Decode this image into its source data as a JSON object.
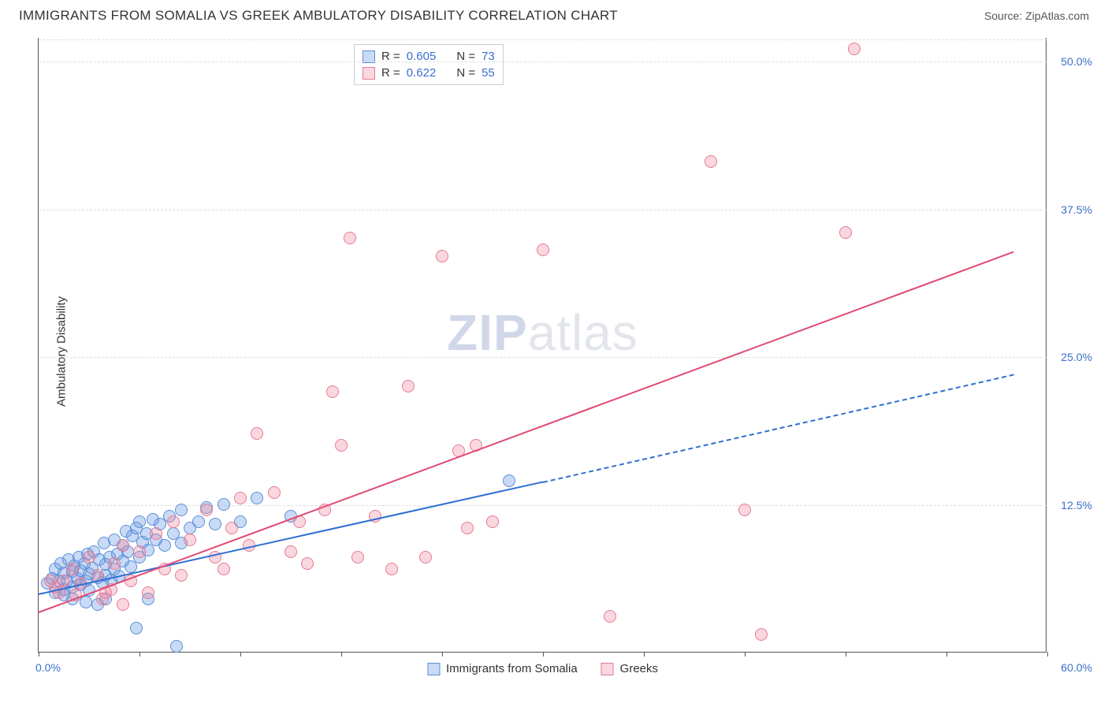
{
  "title": "IMMIGRANTS FROM SOMALIA VS GREEK AMBULATORY DISABILITY CORRELATION CHART",
  "source_label": "Source:",
  "source_name": "ZipAtlas.com",
  "y_axis_label": "Ambulatory Disability",
  "watermark_a": "ZIP",
  "watermark_b": "atlas",
  "chart": {
    "type": "scatter",
    "xlim": [
      0,
      60
    ],
    "ylim": [
      0,
      52
    ],
    "x_origin_label": "0.0%",
    "x_max_label": "60.0%",
    "y_ticks": [
      {
        "value": 12.5,
        "label": "12.5%"
      },
      {
        "value": 25.0,
        "label": "25.0%"
      },
      {
        "value": 37.5,
        "label": "37.5%"
      },
      {
        "value": 50.0,
        "label": "50.0%"
      }
    ],
    "x_tick_positions": [
      0,
      6,
      12,
      18,
      24,
      30,
      36,
      42,
      48,
      54,
      60
    ],
    "background_color": "#ffffff",
    "grid_color": "#dddddd",
    "axis_color": "#555555",
    "tick_label_color": "#3b6fc9",
    "marker_radius": 8,
    "marker_stroke_width": 1.2,
    "series": [
      {
        "id": "somalia",
        "label": "Immigrants from Somalia",
        "fill": "rgba(100,150,230,0.35)",
        "stroke": "#5a8fd6",
        "R": "0.605",
        "N": "73",
        "trend": {
          "x1": 0,
          "y1": 5.0,
          "x2": 30,
          "y2": 14.5,
          "x2_ext": 58,
          "y2_ext": 23.6,
          "color": "#2e6fd1",
          "width": 2,
          "dash_ext": true
        },
        "points": [
          [
            0.5,
            5.8
          ],
          [
            0.8,
            6.2
          ],
          [
            1.0,
            5.0
          ],
          [
            1.0,
            7.0
          ],
          [
            1.2,
            6.0
          ],
          [
            1.3,
            7.5
          ],
          [
            1.5,
            5.3
          ],
          [
            1.5,
            6.7
          ],
          [
            1.7,
            6.0
          ],
          [
            1.8,
            7.8
          ],
          [
            2.0,
            5.5
          ],
          [
            2.0,
            6.8
          ],
          [
            2.1,
            7.3
          ],
          [
            2.3,
            6.2
          ],
          [
            2.4,
            8.0
          ],
          [
            2.5,
            5.7
          ],
          [
            2.5,
            6.9
          ],
          [
            2.7,
            7.5
          ],
          [
            2.8,
            6.0
          ],
          [
            2.9,
            8.3
          ],
          [
            3.0,
            5.2
          ],
          [
            3.0,
            6.6
          ],
          [
            3.2,
            7.1
          ],
          [
            3.3,
            8.5
          ],
          [
            3.5,
            6.3
          ],
          [
            3.6,
            7.8
          ],
          [
            3.8,
            5.9
          ],
          [
            3.9,
            9.2
          ],
          [
            4.0,
            6.5
          ],
          [
            4.0,
            7.4
          ],
          [
            4.2,
            8.0
          ],
          [
            4.3,
            6.1
          ],
          [
            4.5,
            9.5
          ],
          [
            4.5,
            7.0
          ],
          [
            4.7,
            8.3
          ],
          [
            4.8,
            6.4
          ],
          [
            5.0,
            7.7
          ],
          [
            5.0,
            9.0
          ],
          [
            5.2,
            10.2
          ],
          [
            5.3,
            8.5
          ],
          [
            5.5,
            7.2
          ],
          [
            5.6,
            9.8
          ],
          [
            5.8,
            10.5
          ],
          [
            6.0,
            8.0
          ],
          [
            6.0,
            11.0
          ],
          [
            6.2,
            9.3
          ],
          [
            6.4,
            10.0
          ],
          [
            6.5,
            8.6
          ],
          [
            6.8,
            11.2
          ],
          [
            7.0,
            9.5
          ],
          [
            7.2,
            10.8
          ],
          [
            7.5,
            9.0
          ],
          [
            7.8,
            11.5
          ],
          [
            8.0,
            10.0
          ],
          [
            8.5,
            9.2
          ],
          [
            8.5,
            12.0
          ],
          [
            9.0,
            10.5
          ],
          [
            9.5,
            11.0
          ],
          [
            10.0,
            12.2
          ],
          [
            10.5,
            10.8
          ],
          [
            11.0,
            12.5
          ],
          [
            12.0,
            11.0
          ],
          [
            13.0,
            13.0
          ],
          [
            15.0,
            11.5
          ],
          [
            5.8,
            2.0
          ],
          [
            8.2,
            0.5
          ],
          [
            4.0,
            4.5
          ],
          [
            3.5,
            4.0
          ],
          [
            2.8,
            4.2
          ],
          [
            2.0,
            4.5
          ],
          [
            1.5,
            4.8
          ],
          [
            6.5,
            4.5
          ],
          [
            28.0,
            14.5
          ]
        ]
      },
      {
        "id": "greeks",
        "label": "Greeks",
        "fill": "rgba(240,140,160,0.35)",
        "stroke": "#e57a94",
        "R": "0.622",
        "N": "55",
        "trend": {
          "x1": 0,
          "y1": 3.5,
          "x2": 58,
          "y2": 34.0,
          "color": "#e14b74",
          "width": 2,
          "dash_ext": false
        },
        "points": [
          [
            1.0,
            5.5
          ],
          [
            1.5,
            6.0
          ],
          [
            2.0,
            7.0
          ],
          [
            2.5,
            5.8
          ],
          [
            3.0,
            8.0
          ],
          [
            3.5,
            6.5
          ],
          [
            4.0,
            5.0
          ],
          [
            4.5,
            7.5
          ],
          [
            5.0,
            9.0
          ],
          [
            5.5,
            6.0
          ],
          [
            6.0,
            8.5
          ],
          [
            7.0,
            10.0
          ],
          [
            7.5,
            7.0
          ],
          [
            8.0,
            11.0
          ],
          [
            8.5,
            6.5
          ],
          [
            9.0,
            9.5
          ],
          [
            10.0,
            12.0
          ],
          [
            10.5,
            8.0
          ],
          [
            11.0,
            7.0
          ],
          [
            12.0,
            13.0
          ],
          [
            12.5,
            9.0
          ],
          [
            13.0,
            18.5
          ],
          [
            14.0,
            13.5
          ],
          [
            15.0,
            8.5
          ],
          [
            15.5,
            11.0
          ],
          [
            16.0,
            7.5
          ],
          [
            17.0,
            12.0
          ],
          [
            17.5,
            22.0
          ],
          [
            18.0,
            17.5
          ],
          [
            18.5,
            35.0
          ],
          [
            19.0,
            8.0
          ],
          [
            20.0,
            11.5
          ],
          [
            21.0,
            7.0
          ],
          [
            22.0,
            22.5
          ],
          [
            23.0,
            8.0
          ],
          [
            24.0,
            33.5
          ],
          [
            25.0,
            17.0
          ],
          [
            26.0,
            17.5
          ],
          [
            27.0,
            11.0
          ],
          [
            30.0,
            34.0
          ],
          [
            34.0,
            3.0
          ],
          [
            40.0,
            41.5
          ],
          [
            42.0,
            12.0
          ],
          [
            43.0,
            1.5
          ],
          [
            48.0,
            35.5
          ],
          [
            48.5,
            51.0
          ],
          [
            5.0,
            4.0
          ],
          [
            6.5,
            5.0
          ],
          [
            3.8,
            4.5
          ],
          [
            2.2,
            4.8
          ],
          [
            1.2,
            5.0
          ],
          [
            0.7,
            6.0
          ],
          [
            4.3,
            5.3
          ],
          [
            11.5,
            10.5
          ],
          [
            25.5,
            10.5
          ]
        ]
      }
    ]
  },
  "legend_stats": {
    "R_label": "R =",
    "N_label": "N ="
  },
  "bottom_legend": {
    "items": [
      "Immigrants from Somalia",
      "Greeks"
    ]
  }
}
